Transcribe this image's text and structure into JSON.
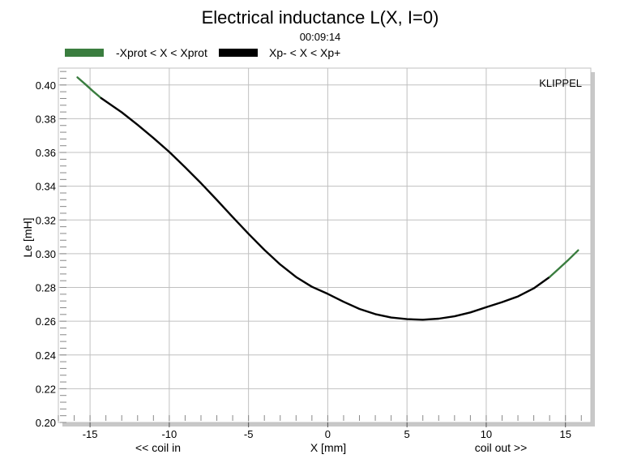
{
  "chart_data": {
    "type": "line",
    "title": "Electrical inductance L(X, I=0)",
    "subtitle": "00:09:14",
    "xlabel": "X [mm]",
    "ylabel": "Le [mH]",
    "x_annotations": {
      "left": "<< coil in",
      "right": "coil out >>"
    },
    "watermark": "KLIPPEL",
    "xlim": [
      -17,
      16.6
    ],
    "ylim": [
      0.2,
      0.41
    ],
    "xticks": [
      -15,
      -10,
      -5,
      0,
      5,
      10,
      15
    ],
    "xtick_labels": [
      "-15",
      "-10",
      "-5",
      "0",
      "5",
      "10",
      "15"
    ],
    "yticks": [
      0.2,
      0.22,
      0.24,
      0.26,
      0.28,
      0.3,
      0.32,
      0.34,
      0.36,
      0.38,
      0.4
    ],
    "ytick_labels": [
      "0.20",
      "0.22",
      "0.24",
      "0.26",
      "0.28",
      "0.30",
      "0.32",
      "0.34",
      "0.36",
      "0.38",
      "0.40"
    ],
    "grid": true,
    "legend_position": "top-left",
    "series": [
      {
        "name": "-Xprot < X < Xprot",
        "color": "#3a7d3f",
        "x": [
          -15.8,
          -15.3,
          -14.8,
          -14.3
        ],
        "y": [
          0.4045,
          0.4005,
          0.3962,
          0.3922
        ]
      },
      {
        "name": "Xp- < X < Xp+",
        "color": "#000000",
        "x": [
          -14.3,
          -13,
          -12,
          -11,
          -10,
          -9,
          -8,
          -7,
          -6,
          -5,
          -4,
          -3,
          -2,
          -1,
          0,
          1,
          2,
          3,
          4,
          5,
          6,
          7,
          8,
          9,
          10,
          11,
          12,
          13,
          14
        ],
        "y": [
          0.3922,
          0.3838,
          0.3764,
          0.3686,
          0.3603,
          0.3513,
          0.3418,
          0.3319,
          0.3217,
          0.3118,
          0.3023,
          0.2936,
          0.2862,
          0.2804,
          0.2762,
          0.2715,
          0.2673,
          0.2642,
          0.2622,
          0.2612,
          0.2609,
          0.2615,
          0.2629,
          0.2652,
          0.2683,
          0.2713,
          0.2747,
          0.2795,
          0.2862
        ]
      },
      {
        "name": "-Xprot < X < Xprot",
        "color": "#3a7d3f",
        "x": [
          14,
          14.6,
          15.2,
          15.8
        ],
        "y": [
          0.2862,
          0.2913,
          0.2965,
          0.302
        ]
      }
    ]
  },
  "legend": [
    {
      "label": "-Xprot < X < Xprot",
      "color": "#3a7d3f"
    },
    {
      "label": "Xp- < X < Xp+",
      "color": "#000000"
    }
  ]
}
